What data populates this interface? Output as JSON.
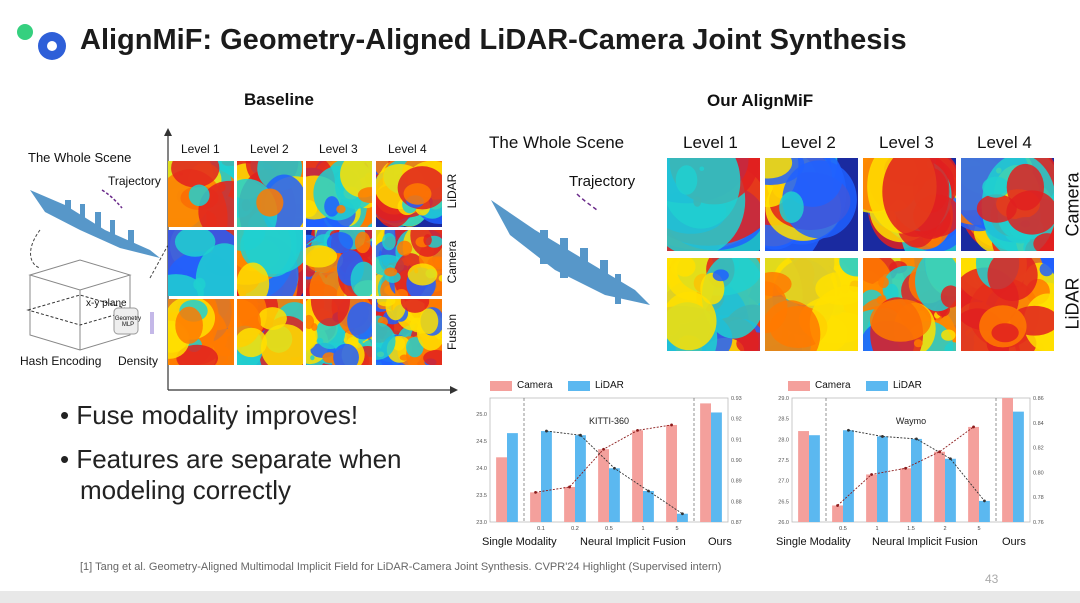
{
  "title": "AlignMiF: Geometry-Aligned LiDAR-Camera Joint Synthesis",
  "baseline": {
    "heading": "Baseline",
    "whole_scene": "The Whole Scene",
    "trajectory": "Trajectory",
    "xy_plane": "x-y plane",
    "geometry_mlp": "Geometry MLP",
    "hash_encoding": "Hash Encoding",
    "density": "Density",
    "levels": [
      "Level 1",
      "Level 2",
      "Level 3",
      "Level 4"
    ],
    "rows": [
      "LiDAR",
      "Camera",
      "Fusion"
    ]
  },
  "ours": {
    "heading": "Our AlignMiF",
    "whole_scene": "The Whole Scene",
    "trajectory": "Trajectory",
    "levels": [
      "Level 1",
      "Level 2",
      "Level 3",
      "Level 4"
    ],
    "rows": [
      "Camera",
      "LiDAR"
    ]
  },
  "bullets": [
    "Fuse modality improves!",
    "Features are separate when modeling correctly"
  ],
  "chart_legend": {
    "camera": "Camera",
    "lidar": "LiDAR"
  },
  "chart_groups": [
    "Single Modality",
    "Neural Implicit Fusion",
    "Ours"
  ],
  "colors": {
    "camera": "#f4a09c",
    "lidar": "#5bb8f0",
    "accent": "#2e5fd8"
  },
  "chart_data": [
    {
      "type": "bar",
      "title": "KITTI-360",
      "x": [
        "",
        "0.1",
        "0.2",
        "0.5",
        "1",
        "5",
        ""
      ],
      "series": [
        {
          "name": "Camera",
          "values": [
            24.2,
            23.55,
            23.65,
            24.35,
            24.7,
            24.8,
            25.2
          ]
        },
        {
          "name": "LiDAR",
          "values": [
            0.913,
            0.914,
            0.912,
            0.896,
            0.885,
            0.874,
            0.923
          ]
        }
      ],
      "y_left_ticks": [
        "23.0",
        "23.5",
        "24.0",
        "24.5",
        "25.0"
      ],
      "y_right_ticks": [
        "0.87",
        "0.88",
        "0.89",
        "0.90",
        "0.91",
        "0.92",
        "0.93"
      ],
      "ylim_left": [
        23.0,
        25.3
      ],
      "ylim_right": [
        0.87,
        0.93
      ]
    },
    {
      "type": "bar",
      "title": "Waymo",
      "x": [
        "",
        "0.5",
        "1",
        "1.5",
        "2",
        "5",
        ""
      ],
      "series": [
        {
          "name": "Camera",
          "values": [
            28.2,
            26.4,
            27.15,
            27.3,
            27.7,
            28.3,
            29.0
          ]
        },
        {
          "name": "LiDAR",
          "values": [
            0.83,
            0.834,
            0.829,
            0.827,
            0.811,
            0.777,
            0.849
          ]
        }
      ],
      "y_left_ticks": [
        "26.0",
        "26.5",
        "27.0",
        "27.5",
        "28.0",
        "28.5",
        "29.0"
      ],
      "y_right_ticks": [
        "0.76",
        "0.78",
        "0.80",
        "0.82",
        "0.84",
        "0.86"
      ],
      "ylim_left": [
        26.0,
        29.0
      ],
      "ylim_right": [
        0.76,
        0.86
      ]
    }
  ],
  "footer": "[1] Tang et al. Geometry-Aligned Multimodal Implicit Field for LiDAR-Camera Joint Synthesis. CVPR'24 Highlight (Supervised intern)",
  "page_number": "43"
}
